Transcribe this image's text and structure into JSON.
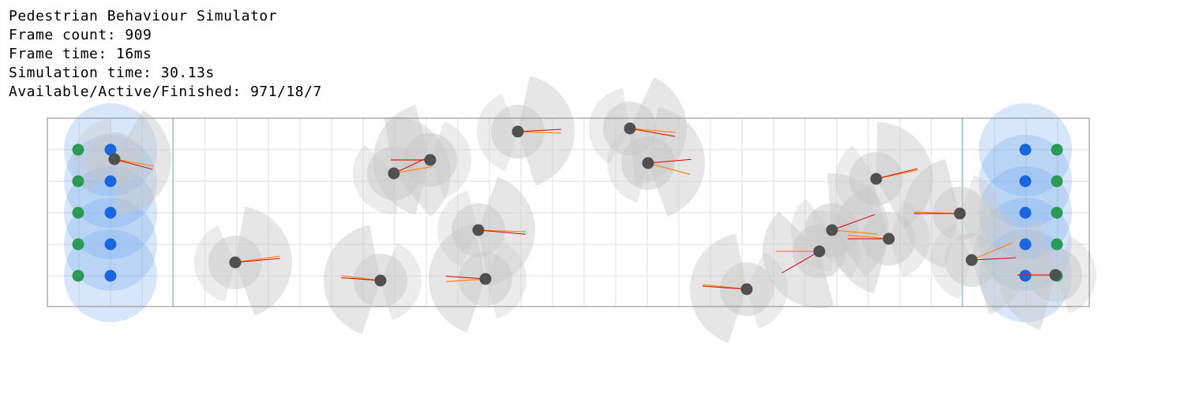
{
  "hud": {
    "title": "Pedestrian Behaviour Simulator",
    "frame_count": "Frame count: 909",
    "frame_time": "Frame time: 16ms",
    "simulation_time": "Simulation time: 30.13s",
    "counts": "Available/Active/Finished: 971/18/7"
  },
  "colors": {
    "background": "#ffffff",
    "corridor_border": "#888888",
    "grid": "#e2e2e2",
    "zone_line": "#6fb9c9",
    "spawn_zone": "#6fa5ee",
    "spawn_point": "#1a66e0",
    "goal_point": "#2a9a55",
    "pedestrian": "#505050",
    "view_cone": "#c8c8c8",
    "heading_red": "#e00000",
    "heading_orange": "#ff8800"
  }
}
